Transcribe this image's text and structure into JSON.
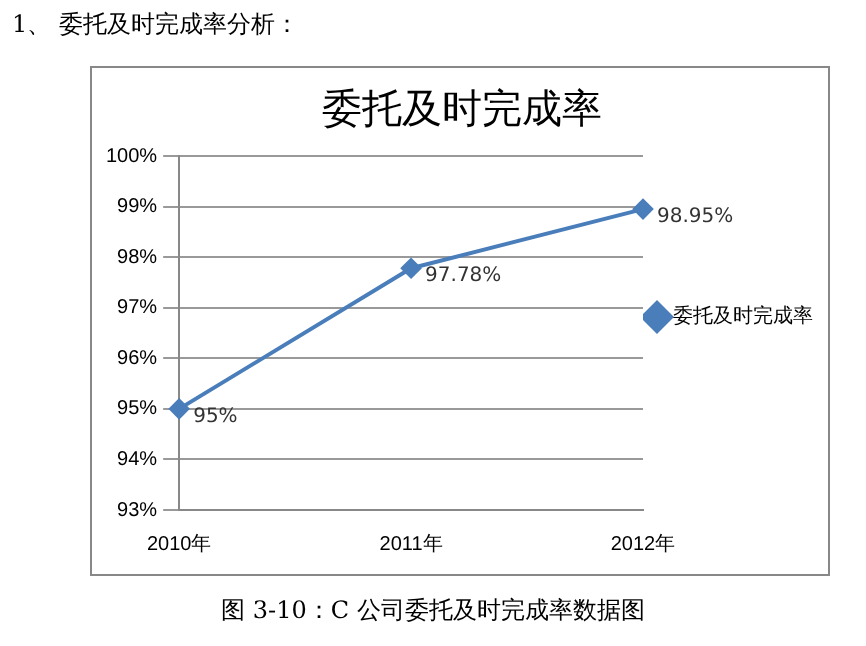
{
  "chart_data": {
    "type": "line",
    "title": "委托及时完成率",
    "categories": [
      "2010年",
      "2011年",
      "2012年"
    ],
    "series": [
      {
        "name": "委托及时完成率",
        "color": "#4a7ebb",
        "values": [
          95,
          97.78,
          98.95
        ],
        "value_labels": [
          "95%",
          "97.78%",
          "98.95%"
        ]
      }
    ],
    "ylim": [
      93,
      100
    ],
    "yticks": [
      {
        "value": 93,
        "label": "93%"
      },
      {
        "value": 94,
        "label": "94%"
      },
      {
        "value": 95,
        "label": "95%"
      },
      {
        "value": 96,
        "label": "96%"
      },
      {
        "value": 97,
        "label": "97%"
      },
      {
        "value": 98,
        "label": "98%"
      },
      {
        "value": 99,
        "label": "99%"
      },
      {
        "value": 100,
        "label": "100%"
      }
    ],
    "grid": "y",
    "legend": "right",
    "marker": "diamond",
    "line_style": "solid",
    "annotations": [
      "1、 委托及时完成率分析：",
      "图 3-10：C 公司委托及时完成率数据图"
    ]
  }
}
